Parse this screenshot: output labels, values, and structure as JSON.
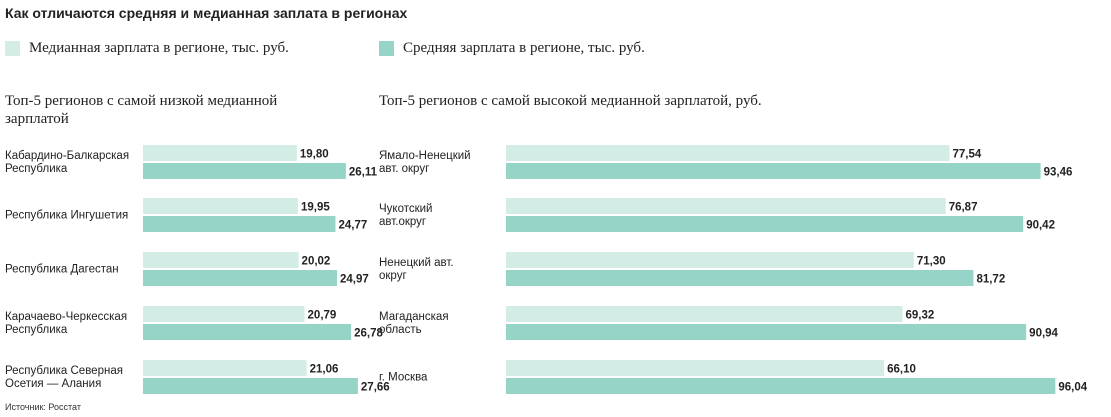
{
  "title": "Как отличаются средняя и медианная заплата в регионах",
  "colors": {
    "median": "#d3ece6",
    "average": "#95d4c6",
    "text": "#222222"
  },
  "chart_data": [
    {
      "type": "bar",
      "orientation": "horizontal",
      "title": "Топ-5 регионов с самой низкой медианной зарплатой",
      "categories": [
        "Кабардино-Балкарская Республика",
        "Республика Ингушетия",
        "Республика Дагестан",
        "Карачаево-Черкесская Республика",
        "Республика Северная Осетия — Алания"
      ],
      "series": [
        {
          "name": "Медианная зарплата в регионе, тыс. руб.",
          "values": [
            19.8,
            19.95,
            20.02,
            20.79,
            21.06
          ],
          "labels": [
            "19,80",
            "19,95",
            "20,02",
            "20,79",
            "21,06"
          ]
        },
        {
          "name": "Средняя зарплата в регионе, тыс. руб.",
          "values": [
            26.11,
            24.77,
            24.97,
            26.78,
            27.66
          ],
          "labels": [
            "26,11",
            "24,77",
            "24,97",
            "26,78",
            "27,66"
          ]
        }
      ]
    },
    {
      "type": "bar",
      "orientation": "horizontal",
      "title": "Топ-5 регионов с самой высокой медианной зарплатой, руб.",
      "categories": [
        "Ямало-Ненецкий авт. округ",
        "Чукотский авт.округ",
        "Ненецкий авт. округ",
        "Магаданская область",
        "г. Москва"
      ],
      "series": [
        {
          "name": "Медианная зарплата в регионе, тыс. руб.",
          "values": [
            77.54,
            76.87,
            71.3,
            69.32,
            66.1
          ],
          "labels": [
            "77,54",
            "76,87",
            "71,30",
            "69,32",
            "66,10"
          ]
        },
        {
          "name": "Средняя зарплата в регионе, тыс. руб.",
          "values": [
            93.46,
            90.42,
            81.72,
            90.94,
            96.04
          ],
          "labels": [
            "93,46",
            "90,42",
            "81,72",
            "90,94",
            "96,04"
          ]
        }
      ]
    }
  ],
  "source": "Источник: Росстат"
}
